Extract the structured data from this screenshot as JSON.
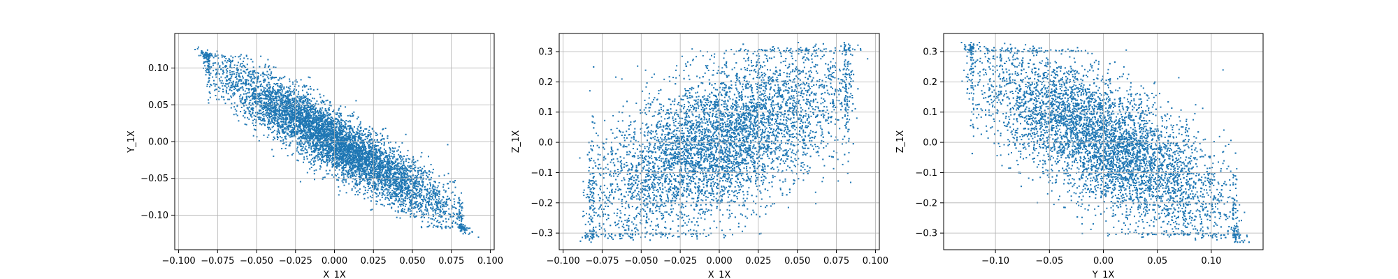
{
  "chart_data": [
    {
      "type": "scatter",
      "title": "",
      "xlabel": "X_1X",
      "ylabel": "Y_1X",
      "xlim": [
        -0.1025,
        0.1025
      ],
      "ylim": [
        -0.147,
        0.147
      ],
      "xticks": [
        -0.1,
        -0.075,
        -0.05,
        -0.025,
        0.0,
        0.025,
        0.05,
        0.075,
        0.1
      ],
      "xtick_labels": [
        "−0.100",
        "−0.075",
        "−0.050",
        "−0.025",
        "0.000",
        "0.025",
        "0.050",
        "0.075",
        "0.100"
      ],
      "yticks": [
        -0.1,
        -0.05,
        0.0,
        0.05,
        0.1
      ],
      "ytick_labels": [
        "−0.10",
        "−0.05",
        "0.00",
        "0.05",
        "0.10"
      ],
      "grid": true,
      "marker_color": "#1f77b4",
      "cloud": {
        "x_range": [
          -0.095,
          0.095
        ],
        "y_range": [
          -0.13,
          0.135
        ],
        "correlation": -0.92,
        "x_std": 0.038,
        "y_std": 0.052,
        "x_bounds": [
          -0.08,
          0.08
        ],
        "y_bounds": [
          -0.115,
          0.115
        ]
      }
    },
    {
      "type": "scatter",
      "title": "",
      "xlabel": "X_1X",
      "ylabel": "Z_1X",
      "xlim": [
        -0.1025,
        0.1025
      ],
      "ylim": [
        -0.355,
        0.36
      ],
      "xticks": [
        -0.1,
        -0.075,
        -0.05,
        -0.025,
        0.0,
        0.025,
        0.05,
        0.075,
        0.1
      ],
      "xtick_labels": [
        "−0.100",
        "−0.075",
        "−0.050",
        "−0.025",
        "0.000",
        "0.025",
        "0.050",
        "0.075",
        "0.100"
      ],
      "yticks": [
        -0.3,
        -0.2,
        -0.1,
        0.0,
        0.1,
        0.2,
        0.3
      ],
      "ytick_labels": [
        "−0.3",
        "−0.2",
        "−0.1",
        "0.0",
        "0.1",
        "0.2",
        "0.3"
      ],
      "grid": true,
      "marker_color": "#1f77b4",
      "cloud": {
        "x_range": [
          -0.095,
          0.095
        ],
        "y_range": [
          -0.33,
          0.33
        ],
        "correlation": 0.6,
        "x_std": 0.042,
        "y_std": 0.15,
        "x_bounds": [
          -0.078,
          0.08
        ],
        "y_bounds": [
          -0.3,
          0.3
        ]
      }
    },
    {
      "type": "scatter",
      "title": "",
      "xlabel": "Y_1X",
      "ylabel": "Z_1X",
      "xlim": [
        -0.148,
        0.148
      ],
      "ylim": [
        -0.355,
        0.36
      ],
      "xticks": [
        -0.1,
        -0.05,
        0.0,
        0.05,
        0.1
      ],
      "xtick_labels": [
        "−0.10",
        "−0.05",
        "0.00",
        "0.05",
        "0.10"
      ],
      "yticks": [
        -0.3,
        -0.2,
        -0.1,
        0.0,
        0.1,
        0.2,
        0.3
      ],
      "ytick_labels": [
        "−0.3",
        "−0.2",
        "−0.1",
        "0.0",
        "0.1",
        "0.2",
        "0.3"
      ],
      "grid": true,
      "marker_color": "#1f77b4",
      "cloud": {
        "x_range": [
          -0.135,
          0.135
        ],
        "y_range": [
          -0.33,
          0.33
        ],
        "correlation": -0.72,
        "x_std": 0.058,
        "y_std": 0.15,
        "x_bounds": [
          -0.12,
          0.12
        ],
        "y_bounds": [
          -0.3,
          0.3
        ]
      }
    }
  ]
}
